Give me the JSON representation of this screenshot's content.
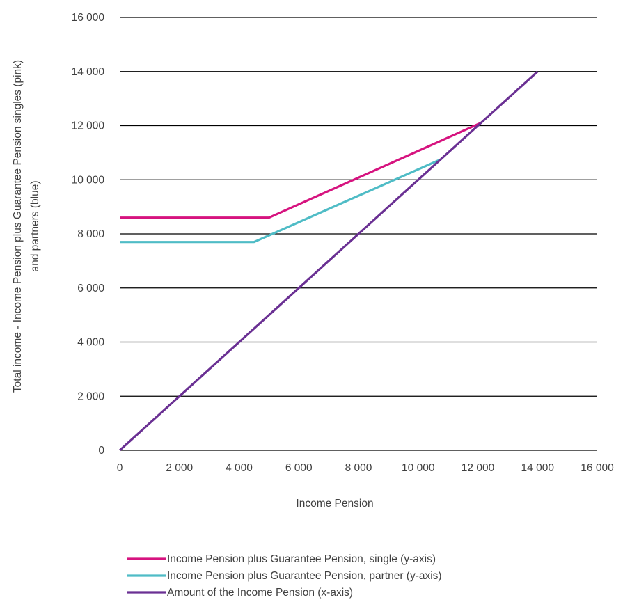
{
  "chart_data": {
    "type": "line",
    "xlabel": "Income Pension",
    "ylabel_lines": [
      "Total income - Income Pension  plus  Guarantee Pension singles  (pink)",
      "and partners (blue)"
    ],
    "xlim": [
      0,
      16000
    ],
    "ylim": [
      0,
      16000
    ],
    "x_ticks": [
      0,
      2000,
      4000,
      6000,
      8000,
      10000,
      12000,
      14000,
      16000
    ],
    "y_ticks": [
      0,
      2000,
      4000,
      6000,
      8000,
      10000,
      12000,
      14000,
      16000
    ],
    "x_tick_labels": [
      "0",
      "2 000",
      "4 000",
      "6 000",
      "8 000",
      "10 000",
      "12 000",
      "14 000",
      "16 000"
    ],
    "y_tick_labels": [
      "0",
      "2 000",
      "4 000",
      "6 000",
      "8 000",
      "10 000",
      "12 000",
      "14 000",
      "16 000"
    ],
    "grid": "horizontal",
    "legend_position": "bottom",
    "series": [
      {
        "name": "Income Pension plus Guarantee Pension, single (y-axis)",
        "color": "#d6137f",
        "points": [
          [
            0,
            8600
          ],
          [
            5000,
            8600
          ],
          [
            12100,
            12100
          ]
        ]
      },
      {
        "name": "Income Pension plus Guarantee Pension, partner (y-axis)",
        "color": "#4fbcc6",
        "points": [
          [
            0,
            7700
          ],
          [
            4500,
            7700
          ],
          [
            10750,
            10750
          ]
        ]
      },
      {
        "name": "Amount of the Income Pension (x-axis)",
        "color": "#6a3093",
        "points": [
          [
            0,
            0
          ],
          [
            14000,
            14000
          ]
        ]
      }
    ]
  }
}
